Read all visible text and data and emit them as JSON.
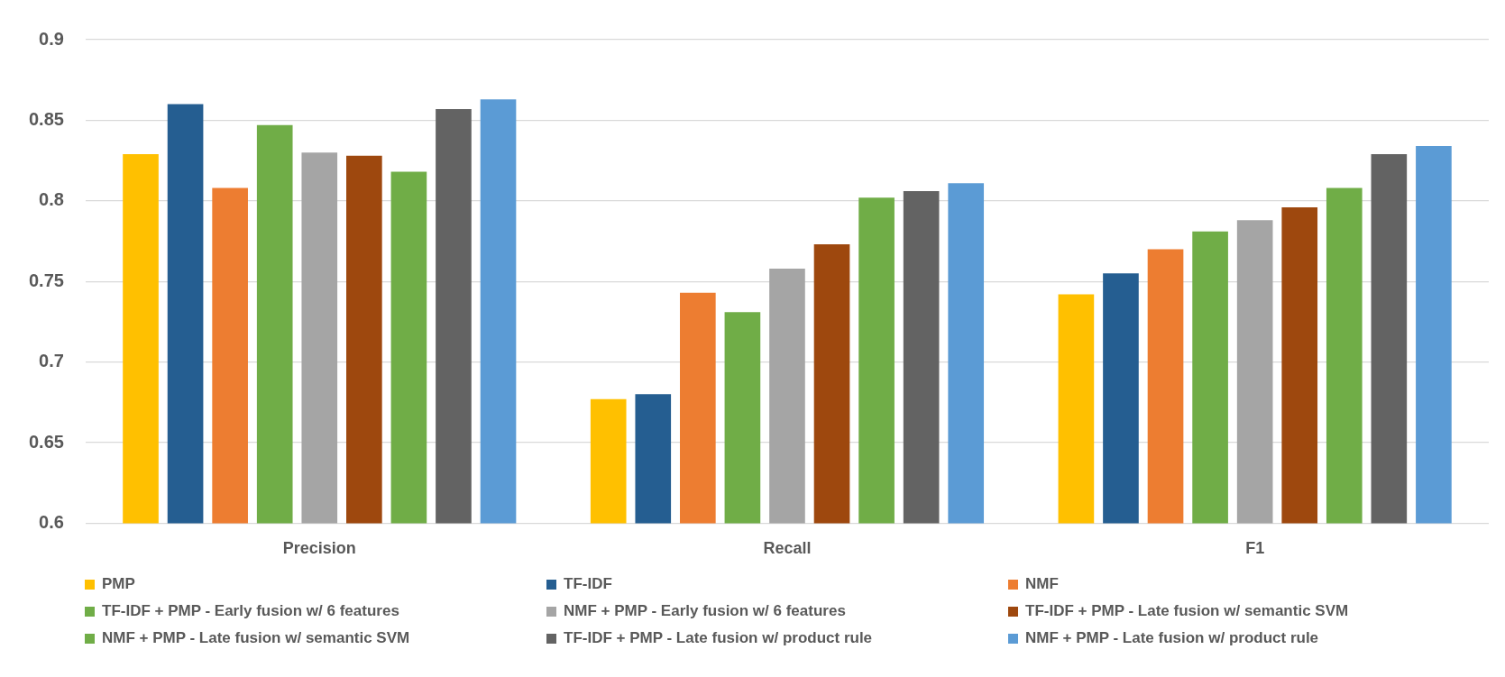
{
  "chart_data": {
    "type": "bar",
    "categories": [
      "Precision",
      "Recall",
      "F1"
    ],
    "series": [
      {
        "name": "PMP",
        "color": "#ffc000",
        "values": [
          0.829,
          0.677,
          0.742
        ]
      },
      {
        "name": "TF-IDF",
        "color": "#255e91",
        "values": [
          0.86,
          0.68,
          0.755
        ]
      },
      {
        "name": "NMF",
        "color": "#ed7d31",
        "values": [
          0.808,
          0.743,
          0.77
        ]
      },
      {
        "name": "TF-IDF + PMP - Early fusion w/ 6 features",
        "color": "#70ad47",
        "values": [
          0.847,
          0.731,
          0.781
        ]
      },
      {
        "name": "NMF + PMP - Early fusion w/ 6 features",
        "color": "#a5a5a5",
        "values": [
          0.83,
          0.758,
          0.788
        ]
      },
      {
        "name": "TF-IDF + PMP - Late fusion w/ semantic SVM",
        "color": "#9e480e",
        "values": [
          0.828,
          0.773,
          0.796
        ]
      },
      {
        "name": "NMF + PMP - Late fusion w/ semantic SVM",
        "color": "#70ad47",
        "values": [
          0.818,
          0.802,
          0.808
        ]
      },
      {
        "name": "TF-IDF + PMP - Late fusion w/ product rule",
        "color": "#636363",
        "values": [
          0.857,
          0.806,
          0.829
        ]
      },
      {
        "name": "NMF + PMP - Late fusion w/ product rule",
        "color": "#5b9bd5",
        "values": [
          0.863,
          0.811,
          0.834
        ]
      }
    ],
    "ylim": [
      0.6,
      0.9
    ],
    "yticks": [
      0.6,
      0.65,
      0.7,
      0.75,
      0.8,
      0.85,
      0.9
    ],
    "grid": "y",
    "legend": "bottom"
  }
}
